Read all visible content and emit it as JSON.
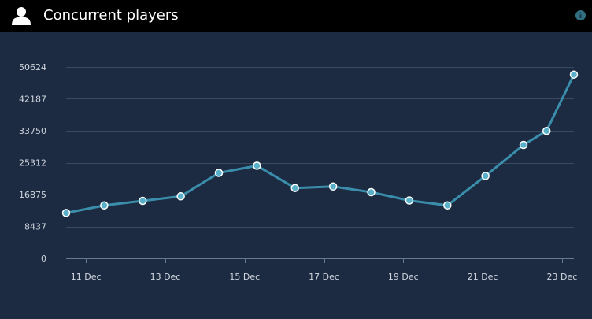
{
  "header": {
    "title": "Concurrent players",
    "user_icon": "user-icon",
    "info_icon": "info-icon"
  },
  "colors": {
    "background": "#1c2b41",
    "header": "#000000",
    "line": "#3a8eab",
    "point_fill": "#5ab0c8",
    "point_stroke": "#ffffff",
    "grid": "#3a4a5e"
  },
  "chart_data": {
    "type": "line",
    "title": "Concurrent players",
    "xlabel": "",
    "ylabel": "",
    "ylim": [
      0,
      50624
    ],
    "xlim": [
      10.5,
      23.3
    ],
    "y_ticks": [
      0,
      8437,
      16875,
      25312,
      33750,
      42187,
      50624
    ],
    "y_tick_labels": [
      "0",
      "8437",
      "16875",
      "25312",
      "33750",
      "42187",
      "50624"
    ],
    "x_ticks": [
      11,
      13,
      15,
      17,
      19,
      21,
      23
    ],
    "x_tick_labels": [
      "11 Dec",
      "13 Dec",
      "15 Dec",
      "17 Dec",
      "19 Dec",
      "21 Dec",
      "23 Dec"
    ],
    "grid": true,
    "series": [
      {
        "name": "Concurrent players",
        "x": [
          10.5,
          11.46,
          12.43,
          13.39,
          14.35,
          15.31,
          16.27,
          17.23,
          18.19,
          19.15,
          20.11,
          21.07,
          22.03,
          22.61,
          23.3
        ],
        "values": [
          12000,
          14000,
          15200,
          16400,
          22600,
          24500,
          18600,
          19000,
          17500,
          15300,
          14000,
          21800,
          30000,
          33700,
          48600
        ]
      }
    ]
  }
}
